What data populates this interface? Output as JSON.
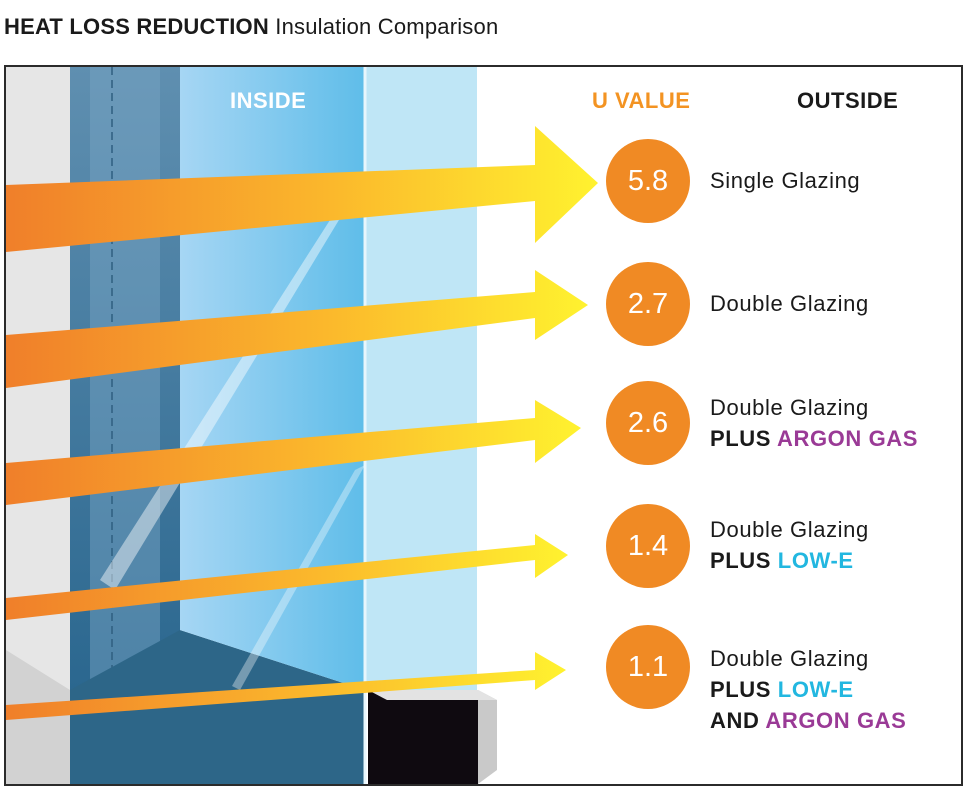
{
  "title": {
    "strong": "HEAT LOSS REDUCTION",
    "rest": " Insulation Comparison"
  },
  "labels": {
    "inside": "INSIDE",
    "u_value": "U VALUE",
    "outside": "OUTSIDE"
  },
  "colors": {
    "u_value_circle": "#f08a24",
    "u_value_heading": "#f39322",
    "argon_gas": "#9a3a96",
    "low_e": "#22b7e0",
    "arrow_start": "#f07f2a",
    "arrow_end": "#fff22f"
  },
  "rows": [
    {
      "u_value": "5.8",
      "lines": [
        [
          {
            "text": "Single Glazing",
            "style": "normal"
          }
        ]
      ]
    },
    {
      "u_value": "2.7",
      "lines": [
        [
          {
            "text": "Double Glazing",
            "style": "normal"
          }
        ]
      ]
    },
    {
      "u_value": "2.6",
      "lines": [
        [
          {
            "text": "Double Glazing",
            "style": "normal"
          }
        ],
        [
          {
            "text": "PLUS ",
            "style": "bold"
          },
          {
            "text": "ARGON GAS",
            "style": "purple"
          }
        ]
      ]
    },
    {
      "u_value": "1.4",
      "lines": [
        [
          {
            "text": "Double Glazing",
            "style": "normal"
          }
        ],
        [
          {
            "text": "PLUS ",
            "style": "bold"
          },
          {
            "text": "LOW-E",
            "style": "cyan"
          }
        ]
      ]
    },
    {
      "u_value": "1.1",
      "lines": [
        [
          {
            "text": "Double Glazing",
            "style": "normal"
          }
        ],
        [
          {
            "text": "PLUS ",
            "style": "bold"
          },
          {
            "text": "LOW-E",
            "style": "cyan"
          }
        ],
        [
          {
            "text": "AND ",
            "style": "bold"
          },
          {
            "text": "ARGON GAS",
            "style": "purple"
          }
        ]
      ]
    }
  ]
}
